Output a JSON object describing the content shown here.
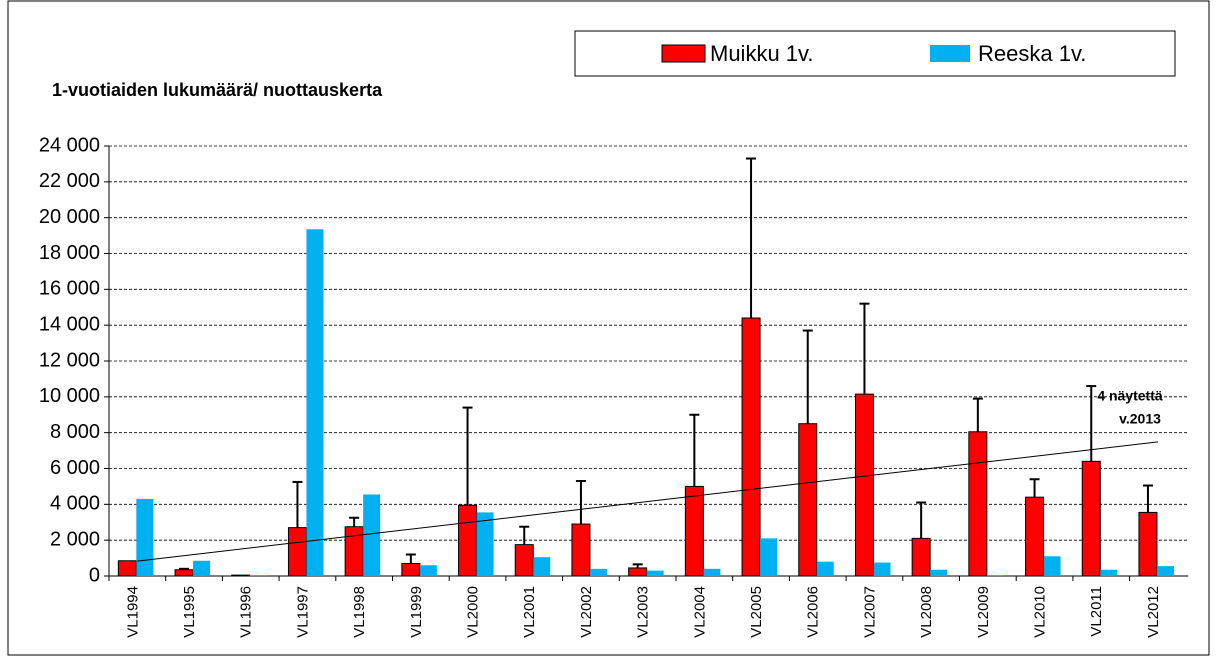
{
  "chart_data": {
    "type": "bar",
    "title": "1-vuotiaiden lukumäärä/ nuottauskerta",
    "annotation": [
      "4 näytettä",
      "v.2013"
    ],
    "categories": [
      "VL1994",
      "VL1995",
      "VL1996",
      "VL1997",
      "VL1998",
      "VL1999",
      "VL2000",
      "VL2001",
      "VL2002",
      "VL2003",
      "VL2004",
      "VL2005",
      "VL2006",
      "VL2007",
      "VL2008",
      "VL2009",
      "VL2010",
      "VL2011",
      "VL2012"
    ],
    "series": [
      {
        "name": "Muikku 1v.",
        "color": "#ff0000",
        "values": [
          850,
          350,
          50,
          2700,
          2750,
          700,
          3950,
          1750,
          2900,
          450,
          5000,
          14400,
          8500,
          10150,
          2100,
          8050,
          4400,
          6400,
          3550
        ],
        "errors": [
          null,
          50,
          null,
          2550,
          500,
          500,
          5450,
          1000,
          2400,
          200,
          4000,
          8900,
          5200,
          5050,
          2000,
          1850,
          1000,
          4200,
          1500
        ]
      },
      {
        "name": "Reeska 1v.",
        "color": "#00b0f0",
        "values": [
          4300,
          850,
          50,
          19350,
          4550,
          600,
          3550,
          1050,
          400,
          300,
          400,
          2100,
          800,
          750,
          350,
          50,
          1100,
          350,
          550
        ]
      }
    ],
    "trendline": true,
    "ylim": [
      0,
      24000
    ],
    "yticks": [
      0,
      {
        "value": 2000,
        "label": "2 000"
      },
      {
        "value": 4000,
        "label": "4 000"
      },
      {
        "value": 6000,
        "label": "6 000"
      },
      {
        "value": 8000,
        "label": "8 000"
      },
      {
        "value": 10000,
        "label": "10 000"
      },
      {
        "value": 12000,
        "label": "12 000"
      },
      {
        "value": 14000,
        "label": "14 000"
      },
      {
        "value": 16000,
        "label": "16 000"
      },
      {
        "value": 18000,
        "label": "18 000"
      },
      {
        "value": 20000,
        "label": "20 000"
      },
      {
        "value": 22000,
        "label": "22 000"
      },
      {
        "value": 24000,
        "label": "24 000"
      }
    ],
    "grid": true
  }
}
